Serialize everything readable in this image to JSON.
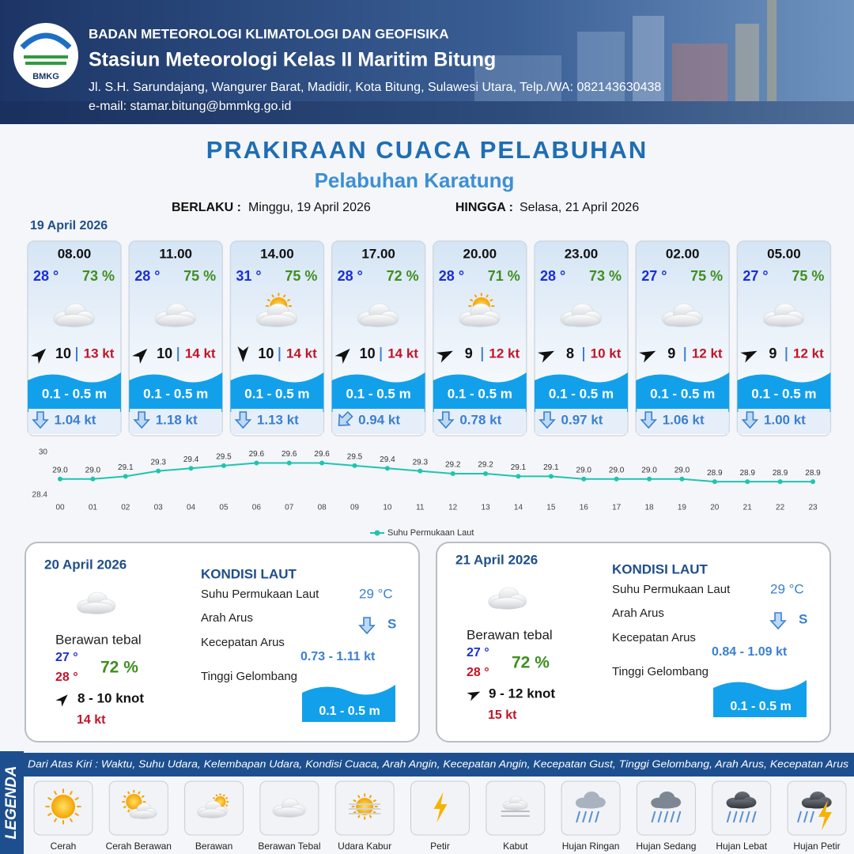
{
  "header": {
    "logo": "BMKG",
    "agency": "BADAN METEOROLOGI KLIMATOLOGI DAN GEOFISIKA",
    "station": "Stasiun Meteorologi Kelas II Maritim Bitung",
    "address": "Jl. S.H. Sarundajang, Wangurer Barat, Madidir, Kota Bitung, Sulawesi Utara, Telp./WA: 082143630438",
    "email": "e-mail: stamar.bitung@bmmkg.go.id"
  },
  "title": "PRAKIRAAN CUACA PELABUHAN",
  "subtitle": "Pelabuhan Karatung",
  "validity": {
    "from_label": "BERLAKU :",
    "from": "Minggu, 19 April 2026",
    "to_label": "HINGGA :",
    "to": "Selasa, 21 April 2026"
  },
  "today": {
    "date": "19 April 2026",
    "cards": [
      {
        "time": "08.00",
        "temp": "28 °",
        "humidity": "73 %",
        "wind": "10",
        "gust": "13 kt",
        "wave": "0.1 - 0.5 m",
        "current": "1.04 kt"
      },
      {
        "time": "11.00",
        "temp": "28 °",
        "humidity": "75 %",
        "wind": "10",
        "gust": "14 kt",
        "wave": "0.1 - 0.5 m",
        "current": "1.18 kt"
      },
      {
        "time": "14.00",
        "temp": "31 °",
        "humidity": "75 %",
        "wind": "10",
        "gust": "14 kt",
        "wave": "0.1 - 0.5 m",
        "current": "1.13 kt"
      },
      {
        "time": "17.00",
        "temp": "28 °",
        "humidity": "72 %",
        "wind": "10",
        "gust": "14 kt",
        "wave": "0.1 - 0.5 m",
        "current": "0.94 kt"
      },
      {
        "time": "20.00",
        "temp": "28 °",
        "humidity": "71 %",
        "wind": "9",
        "gust": "12 kt",
        "wave": "0.1 - 0.5 m",
        "current": "0.78 kt"
      },
      {
        "time": "23.00",
        "temp": "28 °",
        "humidity": "73 %",
        "wind": "8",
        "gust": "10 kt",
        "wave": "0.1 - 0.5 m",
        "current": "0.97 kt"
      },
      {
        "time": "02.00",
        "temp": "27 °",
        "humidity": "75 %",
        "wind": "9",
        "gust": "12 kt",
        "wave": "0.1 - 0.5 m",
        "current": "1.06 kt"
      },
      {
        "time": "05.00",
        "temp": "27 °",
        "humidity": "75 %",
        "wind": "9",
        "gust": "12 kt",
        "wave": "0.1 - 0.5 m",
        "current": "1.00 kt"
      }
    ]
  },
  "chart_data": {
    "type": "line",
    "categories": [
      "00",
      "01",
      "02",
      "03",
      "04",
      "05",
      "06",
      "07",
      "08",
      "09",
      "10",
      "11",
      "12",
      "13",
      "14",
      "15",
      "16",
      "17",
      "18",
      "19",
      "20",
      "21",
      "22",
      "23"
    ],
    "series": [
      {
        "name": "Suhu Permukaan Laut",
        "color": "#1fc4b0",
        "values": [
          29.0,
          29.0,
          29.1,
          29.3,
          29.4,
          29.5,
          29.6,
          29.6,
          29.6,
          29.5,
          29.4,
          29.3,
          29.2,
          29.2,
          29.1,
          29.1,
          29.0,
          29.0,
          29.0,
          29.0,
          28.9,
          28.9,
          28.9,
          28.9
        ],
        "value_labels": [
          "29.0",
          "29.0",
          "29.1",
          "29.3",
          "29.4",
          "29.5",
          "29.6",
          "29.6",
          "29.6",
          "29.5",
          "29.4",
          "29.3",
          "29.2",
          "29.2",
          "29.1",
          "29.1",
          "29.0",
          "29.0",
          "29.0",
          "29.0",
          "28.9",
          "28.9",
          "28.9",
          "28.9"
        ]
      }
    ],
    "ylim": [
      28.4,
      30
    ],
    "yticks": [
      28.4,
      30
    ],
    "grid": false,
    "legend": "bottom"
  },
  "days": [
    {
      "date": "20 April 2026",
      "condition": "Berawan tebal",
      "temp_min": "27 °",
      "temp_max": "28 °",
      "humidity": "72 %",
      "wind": "8  - 10 knot",
      "gust": "14 kt",
      "sea_title": "KONDISI LAUT",
      "sst_label": "Suhu Permukaan Laut",
      "sst": "29 °C",
      "current_dir_label": "Arah Arus",
      "current_dir": "S",
      "current_speed_label": "Kecepatan Arus",
      "current_speed": "0.73 - 1.11 kt",
      "wave_label": "Tinggi Gelombang",
      "wave": "0.1 - 0.5 m"
    },
    {
      "date": "21 April 2026",
      "condition": "Berawan tebal",
      "temp_min": "27 °",
      "temp_max": "28 °",
      "humidity": "72 %",
      "wind": "9  - 12 knot",
      "gust": "15 kt",
      "sea_title": "KONDISI LAUT",
      "sst_label": "Suhu Permukaan Laut",
      "sst": "29 °C",
      "current_dir_label": "Arah Arus",
      "current_dir": "S",
      "current_speed_label": "Kecepatan Arus",
      "current_speed": "0.84 - 1.09 kt",
      "wave_label": "Tinggi Gelombang",
      "wave": "0.1 - 0.5 m"
    }
  ],
  "legend": {
    "title": "LEGENDA",
    "description": "Dari Atas Kiri : Waktu, Suhu Udara, Kelembapan Udara, Kondisi Cuaca, Arah Angin, Kecepatan Angin, Kecepatan Gust, Tinggi Gelombang, Arah Arus, Kecepatan Arus",
    "items": [
      "Cerah",
      "Cerah Berawan",
      "Berawan",
      "Berawan Tebal",
      "Udara Kabur",
      "Petir",
      "Kabut",
      "Hujan Ringan",
      "Hujan Sedang",
      "Hujan Lebat",
      "Hujan Petir"
    ]
  }
}
